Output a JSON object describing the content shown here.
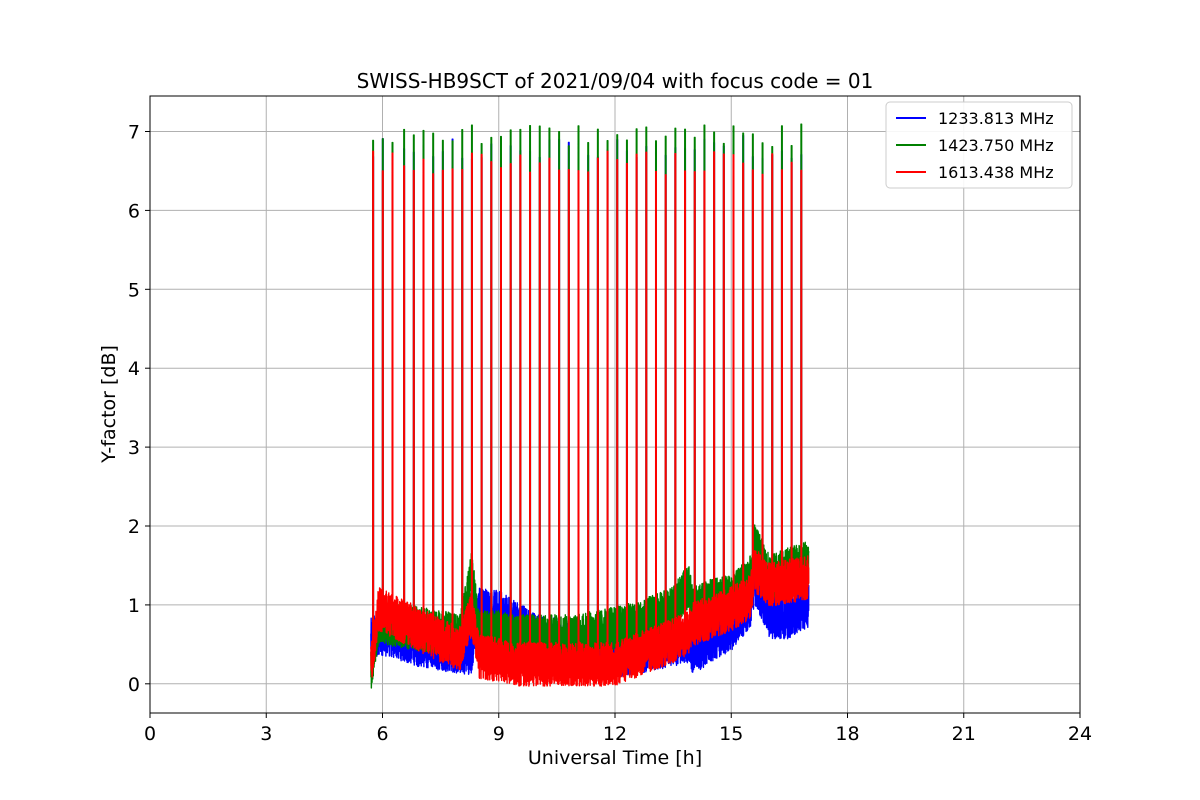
{
  "chart_data": {
    "type": "line",
    "title": "SWISS-HB9SCT of 2021/09/04 with focus code = 01",
    "xlabel": "Universal Time [h]",
    "ylabel": "Y-factor [dB]",
    "xlim": [
      0,
      24
    ],
    "ylim": [
      -0.37,
      7.45
    ],
    "xticks": [
      0,
      3,
      6,
      9,
      12,
      15,
      18,
      21,
      24
    ],
    "yticks": [
      0,
      1,
      2,
      3,
      4,
      5,
      6,
      7
    ],
    "grid": true,
    "legend_position": "top-right",
    "data_range_x": [
      5.7,
      17.0
    ],
    "calibration_times": [
      5.75,
      6.0,
      6.25,
      6.55,
      6.8,
      7.05,
      7.3,
      7.55,
      7.8,
      8.05,
      8.3,
      8.55,
      8.8,
      9.05,
      9.3,
      9.55,
      9.8,
      10.05,
      10.3,
      10.55,
      10.8,
      11.05,
      11.3,
      11.55,
      11.8,
      12.05,
      12.3,
      12.55,
      12.8,
      13.05,
      13.3,
      13.55,
      13.8,
      14.05,
      14.3,
      14.55,
      14.8,
      15.05,
      15.3,
      15.55,
      15.8,
      16.05,
      16.3,
      16.55,
      16.8
    ],
    "series": [
      {
        "name": "1233.813 MHz",
        "color": "#0000ff",
        "peak_level": 6.8,
        "baseline_x": [
          5.7,
          5.9,
          6.3,
          6.9,
          7.5,
          8.0,
          8.3,
          8.5,
          9.0,
          9.5,
          10.0,
          10.5,
          11.0,
          11.5,
          12.0,
          12.5,
          13.0,
          13.5,
          13.9,
          14.0,
          14.5,
          15.0,
          15.5,
          15.6,
          16.0,
          16.5,
          17.0
        ],
        "baseline_y": [
          0.55,
          0.65,
          0.6,
          0.5,
          0.45,
          0.4,
          0.4,
          0.95,
          0.9,
          0.75,
          0.6,
          0.55,
          0.45,
          0.4,
          0.35,
          0.4,
          0.45,
          0.5,
          0.55,
          0.4,
          0.55,
          0.7,
          1.0,
          1.3,
          0.85,
          0.85,
          1.0
        ]
      },
      {
        "name": "1423.750 MHz",
        "color": "#008000",
        "peak_level": 6.95,
        "baseline_x": [
          5.7,
          5.9,
          6.3,
          6.9,
          7.5,
          8.0,
          8.3,
          8.5,
          9.0,
          9.5,
          10.0,
          10.5,
          11.0,
          11.5,
          12.0,
          12.5,
          13.0,
          13.5,
          13.9,
          14.0,
          14.5,
          15.0,
          15.5,
          15.6,
          16.0,
          16.5,
          17.0
        ],
        "baseline_y": [
          0.15,
          0.8,
          0.75,
          0.7,
          0.65,
          0.6,
          1.4,
          0.65,
          0.65,
          0.6,
          0.6,
          0.6,
          0.6,
          0.65,
          0.7,
          0.75,
          0.85,
          0.95,
          1.25,
          0.95,
          1.05,
          1.1,
          1.35,
          1.75,
          1.35,
          1.45,
          1.55
        ]
      },
      {
        "name": "1613.438 MHz",
        "color": "#ff0000",
        "peak_level": 6.6,
        "baseline_x": [
          5.7,
          5.9,
          6.3,
          6.9,
          7.5,
          8.0,
          8.3,
          8.5,
          9.0,
          9.5,
          10.0,
          10.5,
          11.0,
          11.5,
          12.0,
          12.5,
          13.0,
          13.5,
          13.9,
          14.0,
          14.5,
          15.0,
          15.5,
          15.6,
          16.0,
          16.5,
          17.0
        ],
        "baseline_y": [
          0.25,
          0.95,
          0.85,
          0.7,
          0.55,
          0.45,
          0.9,
          0.35,
          0.3,
          0.25,
          0.25,
          0.25,
          0.25,
          0.25,
          0.25,
          0.35,
          0.45,
          0.55,
          0.65,
          0.75,
          0.85,
          0.95,
          1.1,
          1.45,
          1.25,
          1.3,
          1.35
        ]
      }
    ]
  }
}
